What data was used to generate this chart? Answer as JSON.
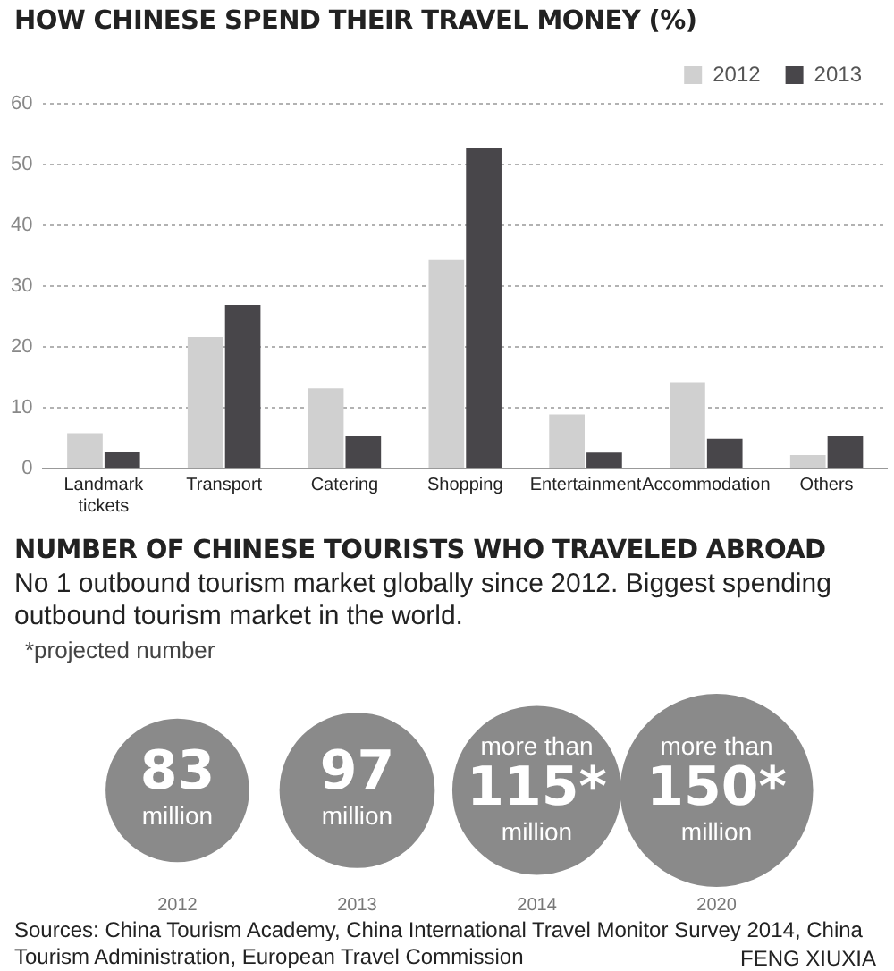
{
  "chart_data": [
    {
      "type": "bar",
      "title": "HOW CHINESE SPEND THEIR TRAVEL MONEY (%)",
      "categories": [
        "Landmark tickets",
        "Transport",
        "Catering",
        "Shopping",
        "Entertainment",
        "Accommodation",
        "Others"
      ],
      "series": [
        {
          "name": "2012",
          "color": "#d0d0d0",
          "values": [
            5.8,
            21.6,
            13.2,
            34.3,
            8.9,
            14.2,
            2.2
          ]
        },
        {
          "name": "2013",
          "color": "#48464a",
          "values": [
            2.8,
            26.9,
            5.3,
            52.7,
            2.6,
            4.9,
            5.3
          ]
        }
      ],
      "ylim": [
        0,
        60
      ],
      "yticks": [
        0,
        10,
        20,
        30,
        40,
        50,
        60
      ],
      "grid": "y",
      "legend": "top right"
    },
    {
      "type": "other",
      "title": "NUMBER OF CHINESE TOURISTS WHO TRAVELED ABROAD",
      "subtitle": "No 1 outbound tourism market globally since 2012. Biggest spending outbound tourism market in the world.",
      "categories": [
        "2012",
        "2013",
        "2014",
        "2020"
      ],
      "values": [
        83,
        97,
        115,
        150
      ],
      "value_labels": [
        "83",
        "97",
        "more than\n115*",
        "more than\n150*"
      ],
      "ylabel": "million",
      "color": "#8a8a8a",
      "annotations": [
        "*projected number",
        "Sources: China Tourism Academy, China International Travel Monitor Survey 2014, China Tourism Administration, European Travel Commission",
        "FENG XIUXIA"
      ]
    }
  ]
}
